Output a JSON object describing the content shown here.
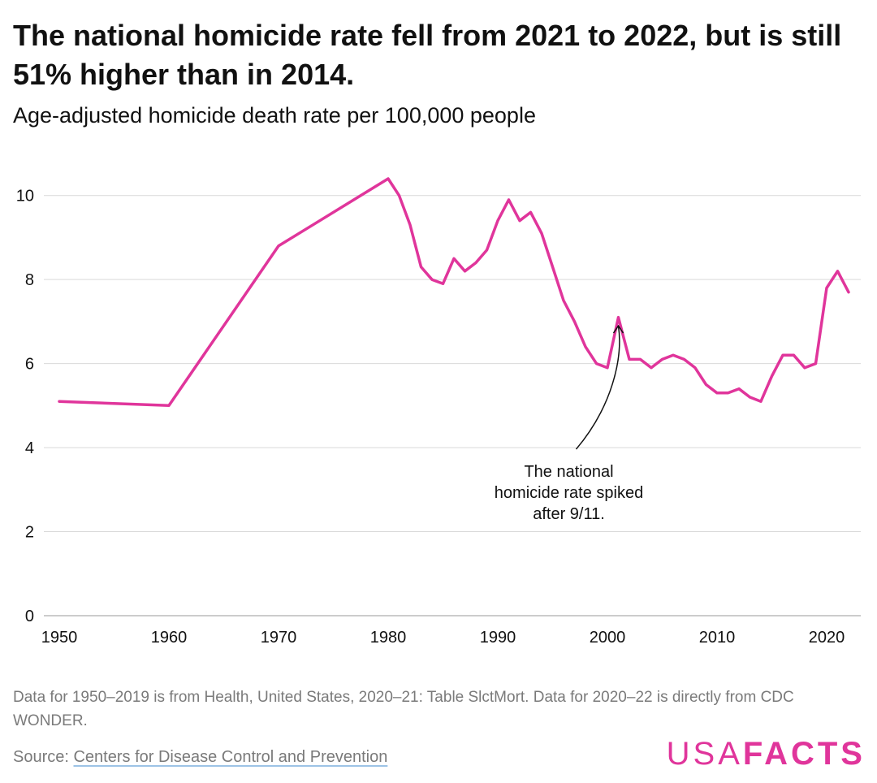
{
  "header": {
    "title": "The national homicide rate fell from 2021 to 2022, but is still 51% higher than in 2014.",
    "subtitle": "Age-adjusted homicide death rate per 100,000 people"
  },
  "chart_data": {
    "type": "line",
    "title": "The national homicide rate fell from 2021 to 2022, but is still 51% higher than in 2014.",
    "subtitle": "Age-adjusted homicide death rate per 100,000 people",
    "xlabel": "",
    "ylabel": "",
    "xlim": [
      1950,
      2022
    ],
    "ylim": [
      0,
      10.4
    ],
    "x_ticks": [
      "1950",
      "1960",
      "1970",
      "1980",
      "1990",
      "2000",
      "2010",
      "2020"
    ],
    "y_ticks": [
      "0",
      "2",
      "4",
      "6",
      "8",
      "10"
    ],
    "grid": "horizontal",
    "line_color": "#e0359b",
    "series": [
      {
        "x": [
          1950,
          1960,
          1970,
          1980,
          1981,
          1982,
          1983,
          1984,
          1985,
          1986,
          1987,
          1988,
          1989,
          1990,
          1991,
          1992,
          1993,
          1994,
          1995,
          1996,
          1997,
          1998,
          1999,
          2000,
          2001,
          2002,
          2003,
          2004,
          2005,
          2006,
          2007,
          2008,
          2009,
          2010,
          2011,
          2012,
          2013,
          2014,
          2015,
          2016,
          2017,
          2018,
          2019,
          2020,
          2021,
          2022
        ],
        "values": [
          5.1,
          5.0,
          8.8,
          10.4,
          10.0,
          9.3,
          8.3,
          8.0,
          7.9,
          8.5,
          8.2,
          8.4,
          8.7,
          9.4,
          9.9,
          9.4,
          9.6,
          9.1,
          8.3,
          7.5,
          7.0,
          6.4,
          6.0,
          5.9,
          7.1,
          6.1,
          6.1,
          5.9,
          6.1,
          6.2,
          6.1,
          5.9,
          5.5,
          5.3,
          5.3,
          5.4,
          5.2,
          5.1,
          5.7,
          6.2,
          6.2,
          5.9,
          6.0,
          7.8,
          8.2,
          7.7
        ]
      }
    ],
    "annotations": [
      {
        "x": 2001,
        "y": 6.9,
        "text_lines": [
          "The national",
          "homicide rate spiked",
          "after 9/11."
        ]
      }
    ]
  },
  "footer": {
    "note": "Data for 1950–2019 is from Health, United States, 2020–21: Table SlctMort. Data for 2020–22 is directly from CDC WONDER.",
    "source_prefix": "Source: ",
    "source_link": "Centers for Disease Control and Prevention",
    "logo_usa": "USA",
    "logo_facts": "FACTS",
    "logo_color": "#e0359b"
  }
}
